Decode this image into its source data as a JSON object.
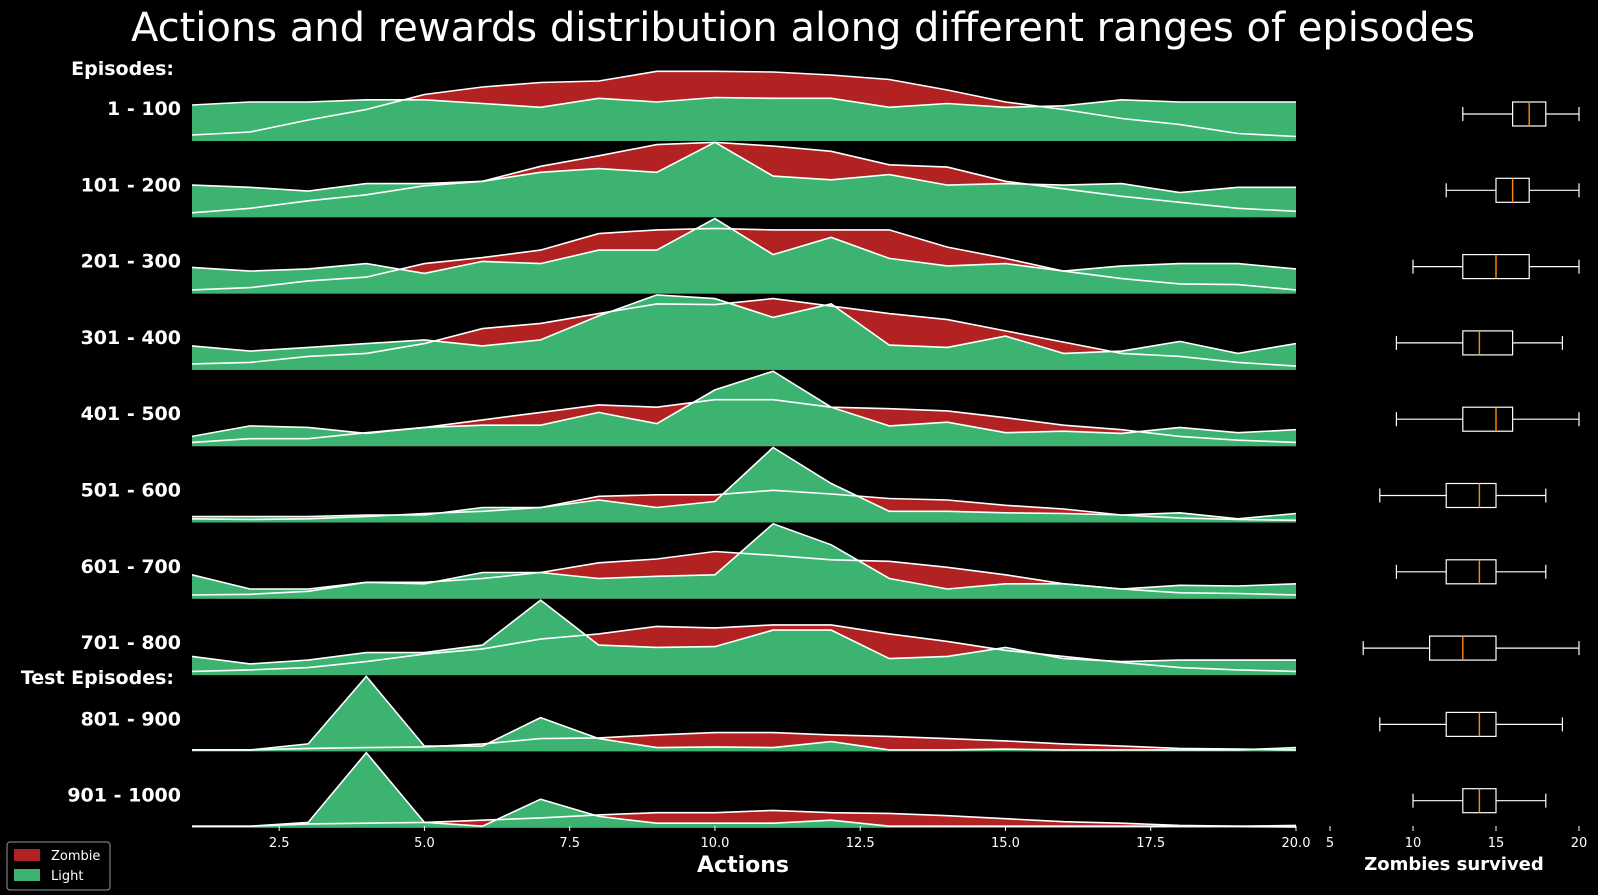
{
  "chart_data": {
    "type": "ridgeline-area",
    "title": "Actions and rewards distribution along different ranges of episodes",
    "group_labels": [
      "Episodes:",
      "Test Episodes:"
    ],
    "xlabel": "Actions",
    "xlim": [
      1,
      20
    ],
    "xticks": [
      "2.5",
      "5.0",
      "7.5",
      "10.0",
      "12.5",
      "15.0",
      "17.5",
      "20.0"
    ],
    "x": [
      1,
      2,
      3,
      4,
      5,
      6,
      7,
      8,
      9,
      10,
      11,
      12,
      13,
      14,
      15,
      16,
      17,
      18,
      19,
      20
    ],
    "legend": [
      {
        "name": "Zombie",
        "color": "#b22222"
      },
      {
        "name": "Light",
        "color": "#3cb371"
      }
    ],
    "rows": [
      {
        "label": "1 - 100",
        "zombie": [
          0.08,
          0.12,
          0.28,
          0.42,
          0.62,
          0.72,
          0.78,
          0.8,
          0.93,
          0.93,
          0.92,
          0.88,
          0.82,
          0.68,
          0.52,
          0.42,
          0.3,
          0.22,
          0.1,
          0.06
        ],
        "light": [
          0.48,
          0.52,
          0.52,
          0.55,
          0.55,
          0.5,
          0.45,
          0.57,
          0.52,
          0.58,
          0.57,
          0.57,
          0.45,
          0.5,
          0.45,
          0.47,
          0.55,
          0.52,
          0.52,
          0.52
        ]
      },
      {
        "label": "101 - 200",
        "zombie": [
          0.06,
          0.12,
          0.22,
          0.3,
          0.42,
          0.48,
          0.68,
          0.82,
          0.97,
          1.0,
          0.95,
          0.88,
          0.7,
          0.67,
          0.48,
          0.38,
          0.28,
          0.2,
          0.12,
          0.08
        ],
        "light": [
          0.43,
          0.4,
          0.35,
          0.45,
          0.45,
          0.48,
          0.6,
          0.65,
          0.6,
          1.0,
          0.55,
          0.5,
          0.57,
          0.43,
          0.45,
          0.43,
          0.45,
          0.33,
          0.4,
          0.4
        ]
      },
      {
        "label": "201 - 300",
        "zombie": [
          0.05,
          0.08,
          0.17,
          0.22,
          0.4,
          0.48,
          0.58,
          0.8,
          0.85,
          0.87,
          0.85,
          0.85,
          0.85,
          0.62,
          0.47,
          0.3,
          0.2,
          0.13,
          0.12,
          0.05
        ],
        "light": [
          0.35,
          0.3,
          0.33,
          0.4,
          0.27,
          0.43,
          0.4,
          0.58,
          0.58,
          1.0,
          0.52,
          0.75,
          0.47,
          0.37,
          0.4,
          0.3,
          0.37,
          0.4,
          0.4,
          0.33
        ]
      },
      {
        "label": "301 - 400",
        "zombie": [
          0.08,
          0.1,
          0.18,
          0.22,
          0.35,
          0.55,
          0.62,
          0.75,
          0.88,
          0.87,
          0.95,
          0.85,
          0.75,
          0.67,
          0.52,
          0.37,
          0.22,
          0.18,
          0.1,
          0.05
        ],
        "light": [
          0.32,
          0.25,
          0.3,
          0.35,
          0.4,
          0.32,
          0.4,
          0.72,
          1.0,
          0.95,
          0.7,
          0.88,
          0.33,
          0.3,
          0.45,
          0.22,
          0.25,
          0.38,
          0.22,
          0.35
        ]
      },
      {
        "label": "401 - 500",
        "zombie": [
          0.05,
          0.1,
          0.1,
          0.18,
          0.25,
          0.35,
          0.45,
          0.55,
          0.52,
          0.62,
          0.62,
          0.52,
          0.5,
          0.47,
          0.38,
          0.28,
          0.22,
          0.13,
          0.08,
          0.05
        ],
        "light": [
          0.13,
          0.27,
          0.25,
          0.17,
          0.25,
          0.28,
          0.28,
          0.45,
          0.3,
          0.75,
          1.0,
          0.52,
          0.27,
          0.32,
          0.18,
          0.2,
          0.17,
          0.25,
          0.18,
          0.22
        ]
      },
      {
        "label": "501 - 600",
        "zombie": [
          0.05,
          0.04,
          0.05,
          0.08,
          0.12,
          0.15,
          0.2,
          0.35,
          0.37,
          0.37,
          0.43,
          0.38,
          0.32,
          0.3,
          0.23,
          0.18,
          0.1,
          0.06,
          0.04,
          0.03
        ],
        "light": [
          0.08,
          0.08,
          0.08,
          0.1,
          0.1,
          0.2,
          0.2,
          0.3,
          0.2,
          0.28,
          1.0,
          0.52,
          0.15,
          0.15,
          0.13,
          0.12,
          0.1,
          0.13,
          0.05,
          0.12
        ]
      },
      {
        "label": "601 - 700",
        "zombie": [
          0.05,
          0.06,
          0.1,
          0.22,
          0.22,
          0.27,
          0.35,
          0.48,
          0.53,
          0.63,
          0.58,
          0.52,
          0.5,
          0.42,
          0.32,
          0.2,
          0.13,
          0.08,
          0.07,
          0.05
        ],
        "light": [
          0.32,
          0.13,
          0.13,
          0.22,
          0.2,
          0.35,
          0.35,
          0.27,
          0.3,
          0.32,
          1.0,
          0.72,
          0.27,
          0.13,
          0.2,
          0.2,
          0.13,
          0.18,
          0.17,
          0.2
        ]
      },
      {
        "label": "701 - 800",
        "zombie": [
          0.05,
          0.07,
          0.1,
          0.18,
          0.28,
          0.35,
          0.48,
          0.55,
          0.65,
          0.63,
          0.67,
          0.67,
          0.55,
          0.45,
          0.33,
          0.25,
          0.17,
          0.1,
          0.07,
          0.05
        ],
        "light": [
          0.25,
          0.15,
          0.2,
          0.3,
          0.3,
          0.4,
          1.0,
          0.4,
          0.37,
          0.38,
          0.6,
          0.6,
          0.22,
          0.25,
          0.37,
          0.22,
          0.18,
          0.2,
          0.2,
          0.2
        ]
      },
      {
        "label": "801 - 900",
        "zombie": [
          0.02,
          0.02,
          0.04,
          0.05,
          0.06,
          0.1,
          0.17,
          0.18,
          0.22,
          0.25,
          0.25,
          0.22,
          0.2,
          0.17,
          0.14,
          0.1,
          0.07,
          0.04,
          0.03,
          0.02
        ],
        "light": [
          0.02,
          0.02,
          0.1,
          1.0,
          0.07,
          0.07,
          0.45,
          0.17,
          0.05,
          0.06,
          0.05,
          0.13,
          0.02,
          0.02,
          0.03,
          0.02,
          0.02,
          0.02,
          0.02,
          0.05
        ]
      },
      {
        "label": "901 - 1000",
        "zombie": [
          0.02,
          0.02,
          0.05,
          0.06,
          0.07,
          0.1,
          0.13,
          0.17,
          0.2,
          0.2,
          0.23,
          0.2,
          0.19,
          0.16,
          0.12,
          0.08,
          0.06,
          0.03,
          0.02,
          0.01
        ],
        "light": [
          0.02,
          0.02,
          0.07,
          1.0,
          0.07,
          0.02,
          0.38,
          0.15,
          0.06,
          0.06,
          0.06,
          0.1,
          0.02,
          0.02,
          0.02,
          0.02,
          0.02,
          0.02,
          0.02,
          0.03
        ]
      }
    ],
    "boxplot": {
      "xlabel": "Zombies survived",
      "xlim": [
        5,
        20
      ],
      "xticks": [
        "5",
        "10",
        "15",
        "20"
      ],
      "stats": [
        {
          "whislo": 13,
          "q1": 16,
          "med": 17,
          "q3": 18,
          "whishi": 20
        },
        {
          "whislo": 12,
          "q1": 15,
          "med": 16,
          "q3": 17,
          "whishi": 20
        },
        {
          "whislo": 10,
          "q1": 13,
          "med": 15,
          "q3": 17,
          "whishi": 20
        },
        {
          "whislo": 9,
          "q1": 13,
          "med": 14,
          "q3": 16,
          "whishi": 19
        },
        {
          "whislo": 9,
          "q1": 13,
          "med": 15,
          "q3": 16,
          "whishi": 20
        },
        {
          "whislo": 8,
          "q1": 12,
          "med": 14,
          "q3": 15,
          "whishi": 18
        },
        {
          "whislo": 9,
          "q1": 12,
          "med": 14,
          "q3": 15,
          "whishi": 18
        },
        {
          "whislo": 7,
          "q1": 11,
          "med": 13,
          "q3": 15,
          "whishi": 20
        },
        {
          "whislo": 8,
          "q1": 12,
          "med": 14,
          "q3": 15,
          "whishi": 19
        },
        {
          "whislo": 10,
          "q1": 13,
          "med": 14,
          "q3": 15,
          "whishi": 18
        }
      ]
    }
  }
}
